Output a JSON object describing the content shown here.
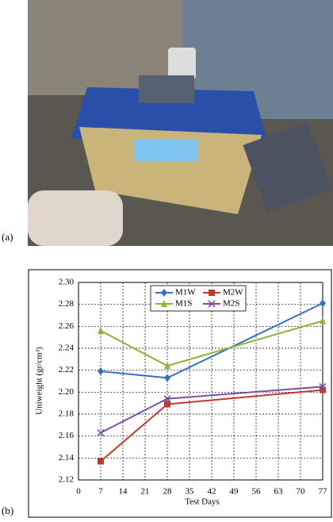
{
  "panels": [
    "(a)",
    "(b)"
  ],
  "chart_data": {
    "type": "line",
    "xlabel": "Test Days",
    "ylabel": "Uniweight (gr/cm³)",
    "x": [
      7,
      28,
      77
    ],
    "series": [
      {
        "name": "M1W",
        "color": "#3b6fc0",
        "marker": "diamond",
        "values": [
          2.219,
          2.213,
          2.281
        ]
      },
      {
        "name": "M2W",
        "color": "#c0392b",
        "marker": "square",
        "values": [
          2.137,
          2.189,
          2.202
        ]
      },
      {
        "name": "M1S",
        "color": "#8db33a",
        "marker": "triangle",
        "values": [
          2.256,
          2.224,
          2.265
        ]
      },
      {
        "name": "M2S",
        "color": "#7b4fa3",
        "marker": "x",
        "values": [
          2.163,
          2.194,
          2.205
        ]
      }
    ],
    "xlim": [
      0,
      77
    ],
    "xticks": [
      0,
      7,
      14,
      21,
      28,
      35,
      42,
      49,
      56,
      63,
      70,
      77
    ],
    "ylim": [
      2.12,
      2.3
    ],
    "yticks": [
      2.12,
      2.14,
      2.16,
      2.18,
      {
        "value": 2.2,
        "label": "2.20"
      },
      2.22,
      2.24,
      2.26,
      2.28,
      {
        "value": 2.3,
        "label": "2.30"
      }
    ],
    "grid": true,
    "legend": "top"
  }
}
